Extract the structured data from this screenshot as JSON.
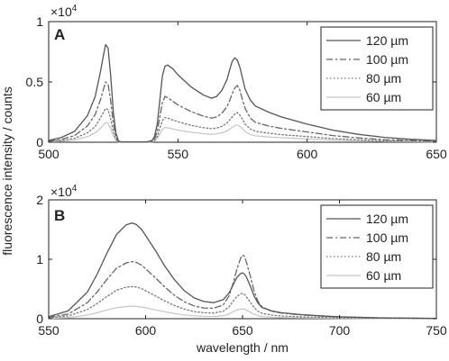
{
  "figure": {
    "ylabel": "fluorescence intensity / counts",
    "xlabel": "wavelength / nm"
  },
  "chart_data": [
    {
      "type": "line",
      "panel_label": "A",
      "y_multiplier": "×10",
      "y_multiplier_exp": "4",
      "xlim": [
        500,
        650
      ],
      "ylim": [
        0,
        10000
      ],
      "xticks": [
        500,
        550,
        600,
        650
      ],
      "yticks": [
        {
          "value": 0,
          "label": "0"
        },
        {
          "value": 5000,
          "label": "0.5"
        },
        {
          "value": 10000,
          "label": "1"
        }
      ],
      "legend_position": "top-right",
      "grid": false,
      "series": [
        {
          "name": "120 µm",
          "style": "solid",
          "color": "#555555",
          "x": [
            500,
            505,
            510,
            515,
            518,
            520,
            521,
            522,
            523,
            524,
            525,
            526,
            527,
            528,
            530,
            535,
            538,
            540,
            541,
            542,
            543,
            544,
            545,
            546,
            548,
            550,
            555,
            560,
            563,
            565,
            567,
            569,
            570,
            571,
            572,
            573,
            574,
            575,
            576,
            578,
            580,
            585,
            590,
            600,
            610,
            620,
            630,
            640,
            650
          ],
          "y": [
            150,
            400,
            900,
            2200,
            3800,
            5800,
            7000,
            8100,
            7800,
            5500,
            2500,
            800,
            100,
            30,
            20,
            20,
            30,
            150,
            500,
            1500,
            3500,
            5500,
            6300,
            6400,
            6100,
            5600,
            4600,
            3900,
            3650,
            3800,
            4300,
            5200,
            6000,
            6700,
            7000,
            6800,
            6200,
            5300,
            4400,
            3500,
            3000,
            2500,
            2100,
            1500,
            1000,
            650,
            400,
            250,
            150
          ]
        },
        {
          "name": "100 µm",
          "style": "dashdot",
          "color": "#666666",
          "x": [
            500,
            505,
            510,
            515,
            518,
            520,
            521,
            522,
            523,
            524,
            525,
            526,
            527,
            528,
            530,
            535,
            538,
            540,
            541,
            542,
            543,
            544,
            545,
            546,
            548,
            550,
            555,
            560,
            563,
            565,
            567,
            569,
            570,
            571,
            572,
            573,
            574,
            575,
            576,
            578,
            580,
            585,
            590,
            600,
            610,
            620,
            630,
            640,
            650
          ],
          "y": [
            90,
            240,
            550,
            1350,
            2300,
            3500,
            4250,
            5000,
            4800,
            3400,
            1550,
            500,
            70,
            20,
            15,
            15,
            20,
            90,
            300,
            900,
            2100,
            3300,
            3800,
            3700,
            3400,
            3100,
            2550,
            2150,
            2000,
            2100,
            2400,
            2950,
            3450,
            4000,
            4500,
            4700,
            4300,
            3500,
            2800,
            2000,
            1650,
            1350,
            1150,
            850,
            550,
            360,
            220,
            140,
            80
          ]
        },
        {
          "name": "80 µm",
          "style": "dotted",
          "color": "#777777",
          "x": [
            500,
            505,
            510,
            515,
            518,
            520,
            521,
            522,
            523,
            524,
            525,
            526,
            527,
            528,
            530,
            535,
            538,
            540,
            541,
            542,
            543,
            544,
            545,
            546,
            548,
            550,
            555,
            560,
            563,
            565,
            567,
            569,
            570,
            571,
            572,
            573,
            574,
            575,
            576,
            578,
            580,
            585,
            590,
            600,
            610,
            620,
            630,
            640,
            650
          ],
          "y": [
            50,
            140,
            320,
            780,
            1300,
            2000,
            2400,
            2800,
            2700,
            1900,
            870,
            280,
            40,
            12,
            10,
            10,
            12,
            50,
            170,
            500,
            1150,
            1800,
            2050,
            2000,
            1850,
            1700,
            1400,
            1200,
            1120,
            1180,
            1320,
            1600,
            1850,
            2100,
            2350,
            2450,
            2250,
            1900,
            1500,
            1100,
            900,
            750,
            630,
            470,
            300,
            200,
            120,
            80,
            45
          ]
        },
        {
          "name": "60 µm",
          "style": "solid",
          "color": "#c8c8c8",
          "x": [
            500,
            505,
            510,
            515,
            518,
            520,
            521,
            522,
            523,
            524,
            525,
            526,
            527,
            528,
            530,
            535,
            538,
            540,
            541,
            542,
            543,
            544,
            545,
            546,
            548,
            550,
            555,
            560,
            563,
            565,
            567,
            569,
            570,
            571,
            572,
            573,
            574,
            575,
            576,
            578,
            580,
            585,
            590,
            600,
            610,
            620,
            630,
            640,
            650
          ],
          "y": [
            30,
            80,
            190,
            460,
            780,
            1150,
            1400,
            1650,
            1580,
            1120,
            510,
            170,
            25,
            8,
            6,
            6,
            8,
            30,
            100,
            300,
            700,
            1080,
            1220,
            1200,
            1100,
            1000,
            830,
            710,
            660,
            700,
            780,
            940,
            1080,
            1230,
            1380,
            1430,
            1320,
            1120,
            880,
            650,
            530,
            440,
            370,
            280,
            180,
            120,
            75,
            45,
            25
          ]
        }
      ]
    },
    {
      "type": "line",
      "panel_label": "B",
      "y_multiplier": "×10",
      "y_multiplier_exp": "4",
      "xlim": [
        550,
        750
      ],
      "ylim": [
        0,
        20000
      ],
      "xticks": [
        550,
        600,
        650,
        700,
        750
      ],
      "yticks": [
        {
          "value": 0,
          "label": "0"
        },
        {
          "value": 10000,
          "label": "1"
        },
        {
          "value": 20000,
          "label": "2"
        }
      ],
      "legend_position": "top-right",
      "grid": false,
      "series": [
        {
          "name": "120 µm",
          "style": "solid",
          "color": "#555555",
          "x": [
            550,
            560,
            570,
            575,
            580,
            585,
            590,
            593,
            595,
            598,
            600,
            605,
            610,
            615,
            620,
            625,
            630,
            635,
            640,
            643,
            645,
            647,
            649,
            650,
            651,
            652,
            654,
            656,
            658,
            660,
            665,
            670,
            680,
            690,
            700,
            720,
            750
          ],
          "y": [
            350,
            1300,
            4500,
            7500,
            11000,
            14200,
            15800,
            16100,
            15900,
            15000,
            14000,
            11500,
            8800,
            6500,
            4700,
            3500,
            2900,
            2700,
            3200,
            4300,
            5600,
            6900,
            7600,
            7700,
            7500,
            7000,
            5500,
            3800,
            2600,
            1900,
            1300,
            1000,
            700,
            480,
            320,
            150,
            50
          ]
        },
        {
          "name": "100 µm",
          "style": "dashdot",
          "color": "#666666",
          "x": [
            550,
            560,
            570,
            575,
            580,
            585,
            590,
            593,
            595,
            598,
            600,
            605,
            610,
            615,
            620,
            625,
            630,
            635,
            640,
            643,
            645,
            647,
            649,
            650,
            651,
            652,
            654,
            656,
            658,
            660,
            665,
            670,
            680,
            690,
            700,
            720,
            750
          ],
          "y": [
            210,
            780,
            2700,
            4500,
            6600,
            8500,
            9400,
            9600,
            9500,
            9000,
            8400,
            6900,
            5300,
            3900,
            2850,
            2150,
            1800,
            1750,
            2300,
            3800,
            5800,
            8200,
            10200,
            10700,
            10500,
            9500,
            7200,
            4600,
            2900,
            2000,
            1250,
            950,
            650,
            450,
            300,
            140,
            45
          ]
        },
        {
          "name": "80 µm",
          "style": "dotted",
          "color": "#777777",
          "x": [
            550,
            560,
            570,
            575,
            580,
            585,
            590,
            593,
            595,
            598,
            600,
            605,
            610,
            615,
            620,
            625,
            630,
            635,
            640,
            643,
            645,
            647,
            649,
            650,
            651,
            652,
            654,
            656,
            658,
            660,
            665,
            670,
            680,
            690,
            700,
            720,
            750
          ],
          "y": [
            120,
            450,
            1550,
            2550,
            3750,
            4800,
            5300,
            5400,
            5350,
            5050,
            4700,
            3850,
            2950,
            2200,
            1600,
            1200,
            1000,
            950,
            1250,
            2000,
            2900,
            3700,
            4150,
            4250,
            4100,
            3700,
            2800,
            1850,
            1250,
            900,
            600,
            450,
            320,
            220,
            150,
            70,
            25
          ]
        },
        {
          "name": "60 µm",
          "style": "solid",
          "color": "#c8c8c8",
          "x": [
            550,
            560,
            570,
            575,
            580,
            585,
            590,
            593,
            595,
            598,
            600,
            605,
            610,
            615,
            620,
            625,
            630,
            635,
            640,
            643,
            645,
            647,
            649,
            650,
            651,
            652,
            654,
            656,
            658,
            660,
            665,
            670,
            680,
            690,
            700,
            720,
            750
          ],
          "y": [
            50,
            180,
            600,
            1000,
            1450,
            1850,
            2050,
            2100,
            2080,
            1960,
            1830,
            1500,
            1150,
            850,
            620,
            470,
            400,
            380,
            500,
            800,
            1150,
            1450,
            1600,
            1650,
            1600,
            1450,
            1100,
            730,
            500,
            360,
            240,
            180,
            130,
            90,
            60,
            30,
            10
          ]
        }
      ]
    }
  ]
}
